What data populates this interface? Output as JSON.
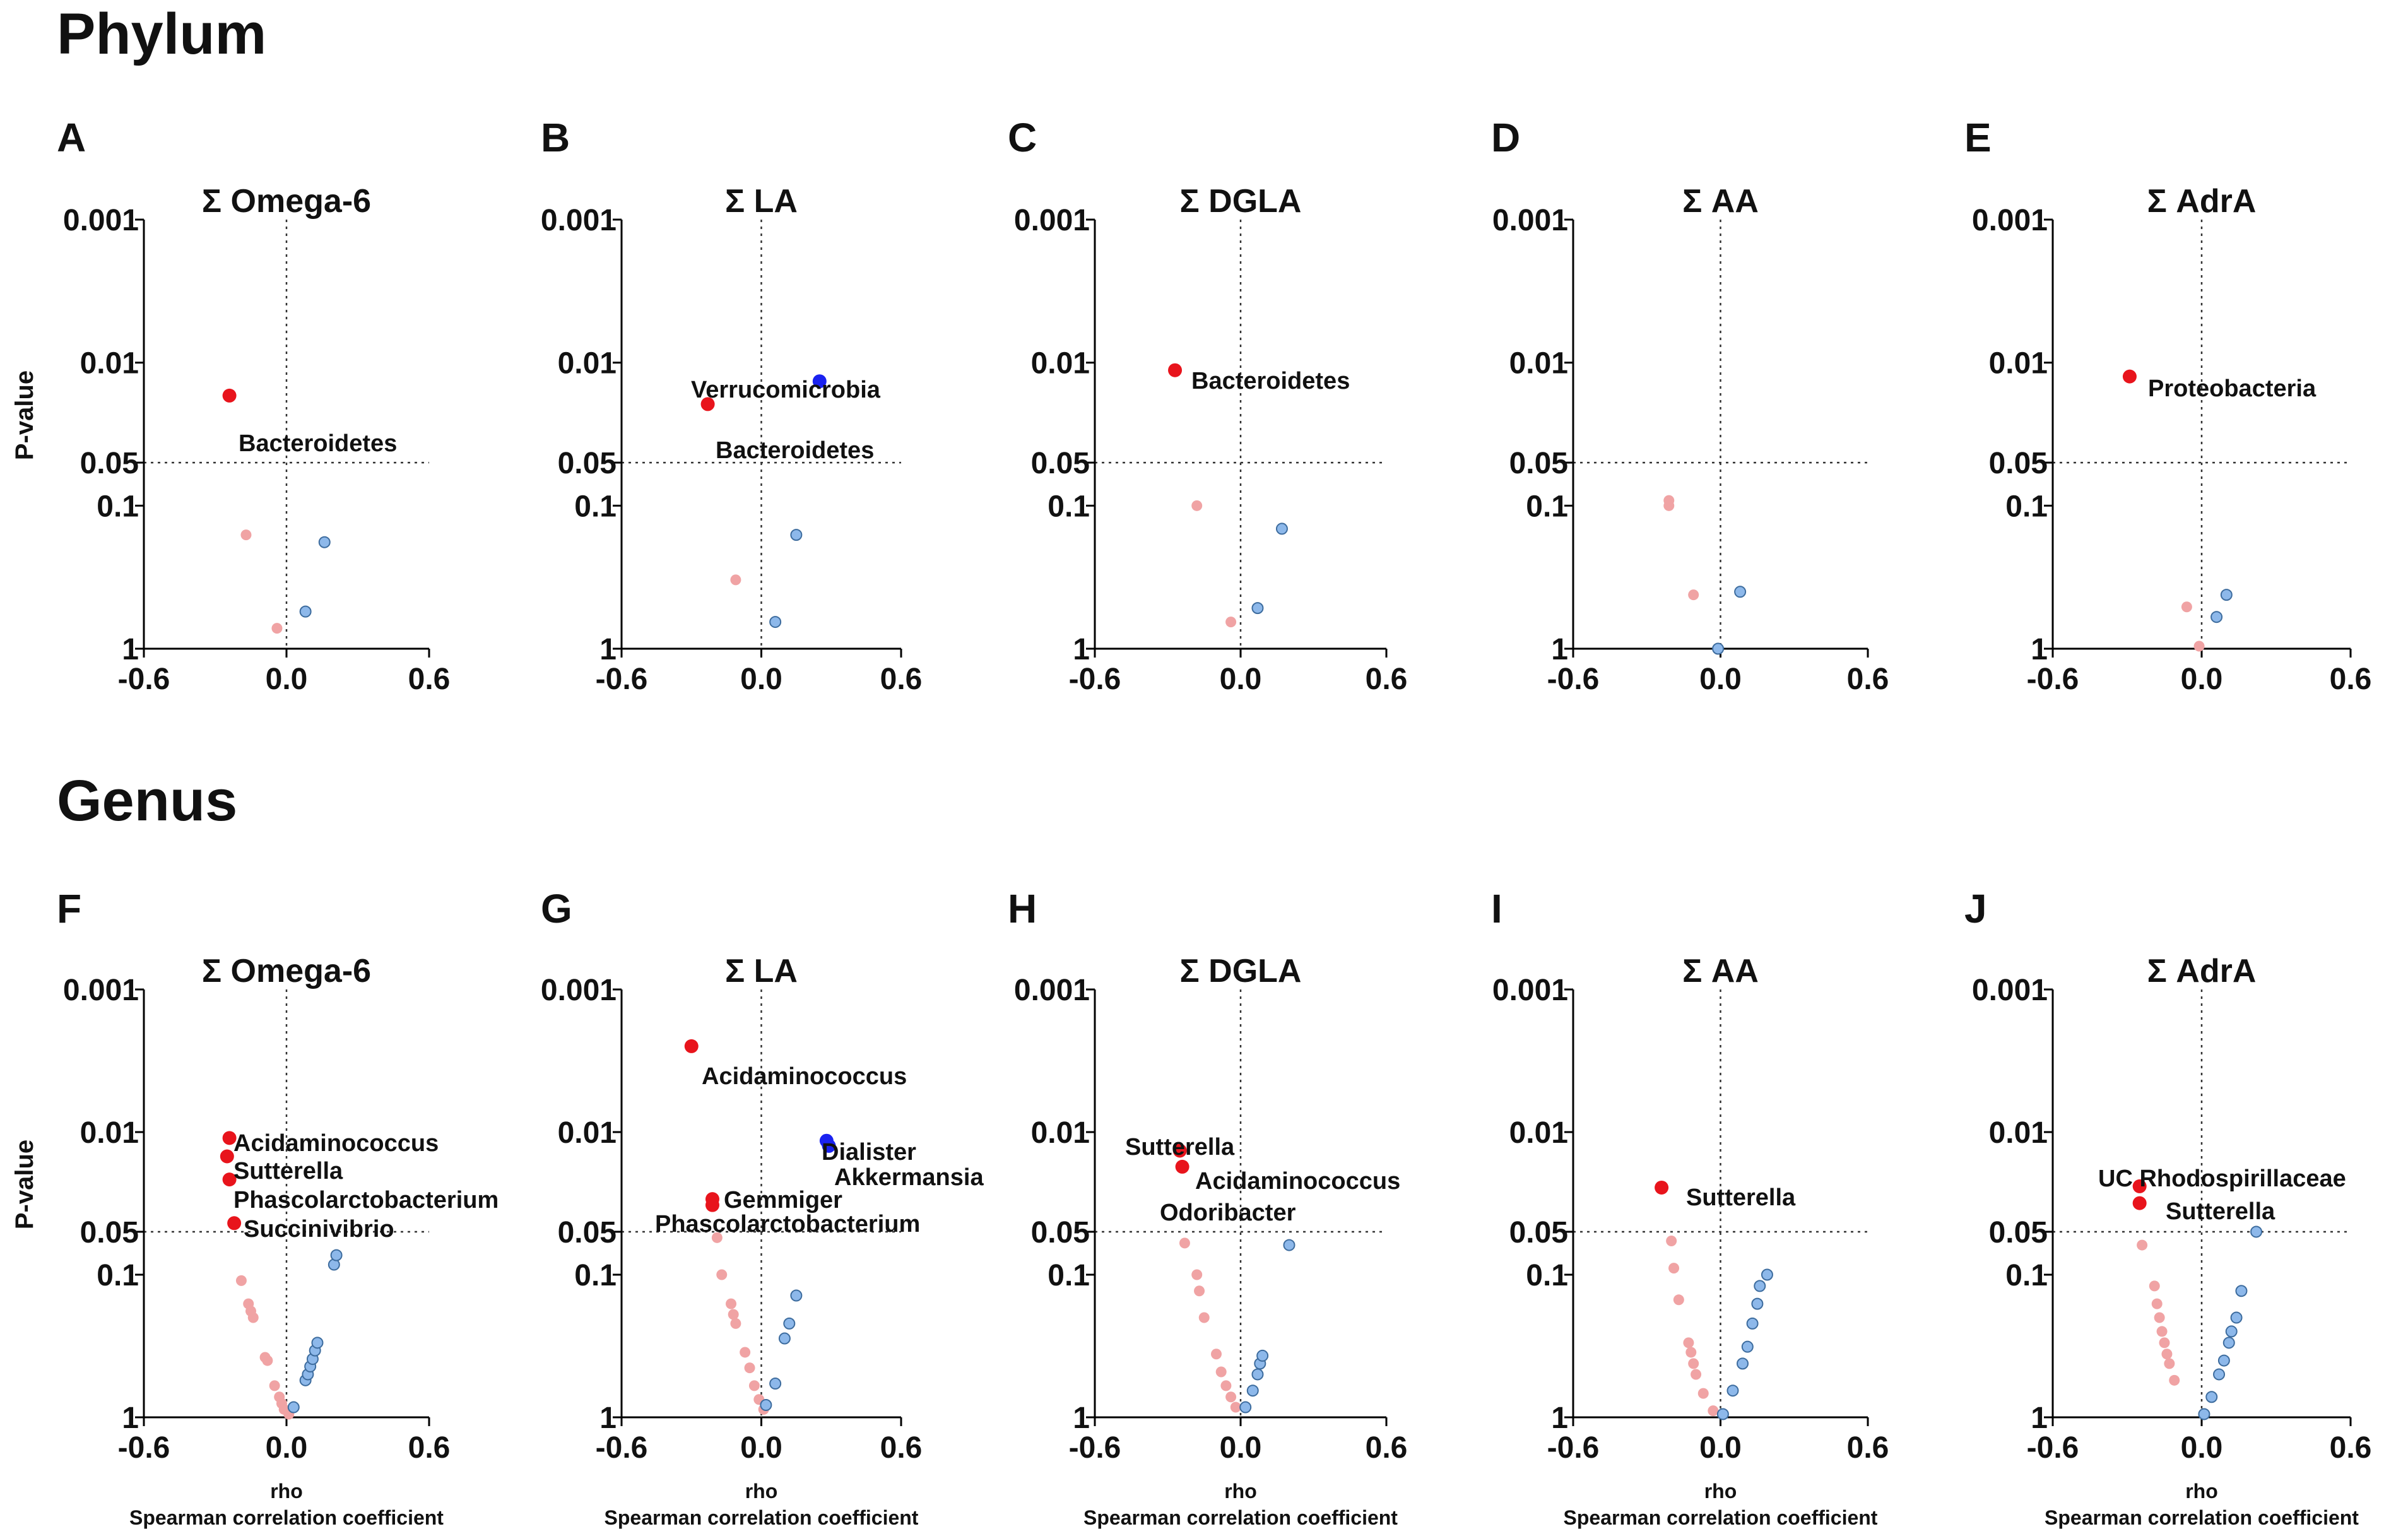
{
  "sections": [
    {
      "title": "Phylum"
    },
    {
      "title": "Genus"
    }
  ],
  "axes": {
    "ylabel": "P-value",
    "xlabel": "rho",
    "xlabel_sub": "Spearman correlation coefficient",
    "yticks": [
      "0.001",
      "0.01",
      "0.05",
      "0.1",
      "1"
    ],
    "xticks": [
      "-0.6",
      "0.0",
      "0.6"
    ]
  },
  "colors": {
    "sig_neg": "#e8141c",
    "sig_pos": "#1a22f0",
    "nonsig_neg": "#f0a3a4",
    "nonsig_pos": "#8db8ea",
    "nonsig_pos_edge": "#3d6c9e"
  },
  "chart_data": [
    {
      "panel": "A",
      "type": "scatter",
      "title": "Σ Omega-6",
      "xlim": [
        -0.6,
        0.6
      ],
      "ylim": [
        1,
        0.001
      ],
      "yscale": "log-reversed",
      "points": [
        {
          "x": -0.24,
          "p": 0.017,
          "group": "sig_neg",
          "label": "Bacteroidetes"
        },
        {
          "x": -0.17,
          "p": 0.16,
          "group": "nonsig_neg"
        },
        {
          "x": -0.04,
          "p": 0.72,
          "group": "nonsig_neg"
        },
        {
          "x": 0.16,
          "p": 0.18,
          "group": "nonsig_pos"
        },
        {
          "x": 0.08,
          "p": 0.55,
          "group": "nonsig_pos"
        }
      ]
    },
    {
      "panel": "B",
      "type": "scatter",
      "title": "Σ LA",
      "xlim": [
        -0.6,
        0.6
      ],
      "ylim": [
        1,
        0.001
      ],
      "yscale": "log-reversed",
      "points": [
        {
          "x": 0.25,
          "p": 0.0135,
          "group": "sig_pos",
          "label": "Verrucomicrobia"
        },
        {
          "x": -0.23,
          "p": 0.0195,
          "group": "sig_neg",
          "label": "Bacteroidetes"
        },
        {
          "x": -0.11,
          "p": 0.33,
          "group": "nonsig_neg"
        },
        {
          "x": 0.15,
          "p": 0.16,
          "group": "nonsig_pos"
        },
        {
          "x": 0.06,
          "p": 0.65,
          "group": "nonsig_pos"
        }
      ]
    },
    {
      "panel": "C",
      "type": "scatter",
      "title": "Σ DGLA",
      "xlim": [
        -0.6,
        0.6
      ],
      "ylim": [
        1,
        0.001
      ],
      "yscale": "log-reversed",
      "points": [
        {
          "x": -0.27,
          "p": 0.0113,
          "group": "sig_neg",
          "label": "Bacteroidetes"
        },
        {
          "x": -0.18,
          "p": 0.1,
          "group": "nonsig_neg"
        },
        {
          "x": -0.04,
          "p": 0.65,
          "group": "nonsig_neg"
        },
        {
          "x": 0.17,
          "p": 0.145,
          "group": "nonsig_pos"
        },
        {
          "x": 0.07,
          "p": 0.52,
          "group": "nonsig_pos"
        }
      ]
    },
    {
      "panel": "D",
      "type": "scatter",
      "title": "Σ AA",
      "xlim": [
        -0.6,
        0.6
      ],
      "ylim": [
        1,
        0.001
      ],
      "yscale": "log-reversed",
      "points": [
        {
          "x": -0.21,
          "p": 0.092,
          "group": "nonsig_neg"
        },
        {
          "x": -0.21,
          "p": 0.1,
          "group": "nonsig_neg"
        },
        {
          "x": -0.11,
          "p": 0.42,
          "group": "nonsig_neg"
        },
        {
          "x": 0.08,
          "p": 0.4,
          "group": "nonsig_pos"
        },
        {
          "x": -0.01,
          "p": 1.0,
          "group": "nonsig_pos"
        }
      ]
    },
    {
      "panel": "E",
      "type": "scatter",
      "title": "Σ AdrA",
      "xlim": [
        -0.6,
        0.6
      ],
      "ylim": [
        1,
        0.001
      ],
      "yscale": "log-reversed",
      "points": [
        {
          "x": -0.29,
          "p": 0.0125,
          "group": "sig_neg",
          "label": "Proteobacteria"
        },
        {
          "x": -0.06,
          "p": 0.51,
          "group": "nonsig_neg"
        },
        {
          "x": -0.01,
          "p": 0.96,
          "group": "nonsig_neg"
        },
        {
          "x": 0.1,
          "p": 0.42,
          "group": "nonsig_pos"
        },
        {
          "x": 0.06,
          "p": 0.6,
          "group": "nonsig_pos"
        }
      ]
    },
    {
      "panel": "F",
      "type": "scatter",
      "title": "Σ Omega-6",
      "xlim": [
        -0.6,
        0.6
      ],
      "ylim": [
        1,
        0.001
      ],
      "yscale": "log-reversed",
      "points": [
        {
          "x": -0.24,
          "p": 0.011,
          "group": "sig_neg",
          "label": "Acidaminococcus"
        },
        {
          "x": -0.25,
          "p": 0.0148,
          "group": "sig_neg",
          "label": "Sutterella"
        },
        {
          "x": -0.24,
          "p": 0.0215,
          "group": "sig_neg",
          "label": "Phascolarctobacterium"
        },
        {
          "x": -0.22,
          "p": 0.0435,
          "group": "sig_neg",
          "label": "Succinivibrio"
        },
        {
          "x": -0.19,
          "p": 0.11,
          "group": "nonsig_neg"
        },
        {
          "x": -0.16,
          "p": 0.16,
          "group": "nonsig_neg"
        },
        {
          "x": -0.15,
          "p": 0.18,
          "group": "nonsig_neg"
        },
        {
          "x": -0.14,
          "p": 0.2,
          "group": "nonsig_neg"
        },
        {
          "x": -0.09,
          "p": 0.38,
          "group": "nonsig_neg"
        },
        {
          "x": -0.08,
          "p": 0.4,
          "group": "nonsig_neg"
        },
        {
          "x": -0.05,
          "p": 0.6,
          "group": "nonsig_neg"
        },
        {
          "x": -0.03,
          "p": 0.72,
          "group": "nonsig_neg"
        },
        {
          "x": -0.02,
          "p": 0.8,
          "group": "nonsig_neg"
        },
        {
          "x": -0.01,
          "p": 0.88,
          "group": "nonsig_neg"
        },
        {
          "x": 0.01,
          "p": 0.95,
          "group": "nonsig_neg"
        },
        {
          "x": 0.03,
          "p": 0.85,
          "group": "nonsig_pos"
        },
        {
          "x": 0.08,
          "p": 0.55,
          "group": "nonsig_pos"
        },
        {
          "x": 0.09,
          "p": 0.5,
          "group": "nonsig_pos"
        },
        {
          "x": 0.1,
          "p": 0.44,
          "group": "nonsig_pos"
        },
        {
          "x": 0.11,
          "p": 0.39,
          "group": "nonsig_pos"
        },
        {
          "x": 0.12,
          "p": 0.34,
          "group": "nonsig_pos"
        },
        {
          "x": 0.13,
          "p": 0.3,
          "group": "nonsig_pos"
        },
        {
          "x": 0.2,
          "p": 0.085,
          "group": "nonsig_pos"
        },
        {
          "x": 0.21,
          "p": 0.073,
          "group": "nonsig_pos"
        }
      ]
    },
    {
      "panel": "G",
      "type": "scatter",
      "title": "Σ LA",
      "xlim": [
        -0.6,
        0.6
      ],
      "ylim": [
        1,
        0.001
      ],
      "yscale": "log-reversed",
      "points": [
        {
          "x": -0.3,
          "p": 0.0025,
          "group": "sig_neg",
          "label": "Acidaminococcus"
        },
        {
          "x": 0.28,
          "p": 0.0115,
          "group": "sig_pos",
          "label": "Dialister"
        },
        {
          "x": 0.29,
          "p": 0.0125,
          "group": "sig_pos",
          "label": "Akkermansia"
        },
        {
          "x": -0.21,
          "p": 0.0295,
          "group": "sig_neg",
          "label": "Gemmiger"
        },
        {
          "x": -0.21,
          "p": 0.0325,
          "group": "sig_neg",
          "label": "Phascolarctobacterium"
        },
        {
          "x": -0.19,
          "p": 0.055,
          "group": "nonsig_neg"
        },
        {
          "x": -0.17,
          "p": 0.1,
          "group": "nonsig_neg"
        },
        {
          "x": -0.13,
          "p": 0.16,
          "group": "nonsig_neg"
        },
        {
          "x": -0.12,
          "p": 0.19,
          "group": "nonsig_neg"
        },
        {
          "x": -0.11,
          "p": 0.22,
          "group": "nonsig_neg"
        },
        {
          "x": -0.07,
          "p": 0.35,
          "group": "nonsig_neg"
        },
        {
          "x": -0.05,
          "p": 0.45,
          "group": "nonsig_neg"
        },
        {
          "x": -0.03,
          "p": 0.6,
          "group": "nonsig_neg"
        },
        {
          "x": -0.01,
          "p": 0.75,
          "group": "nonsig_neg"
        },
        {
          "x": 0.01,
          "p": 0.88,
          "group": "nonsig_neg"
        },
        {
          "x": 0.02,
          "p": 0.82,
          "group": "nonsig_pos"
        },
        {
          "x": 0.06,
          "p": 0.58,
          "group": "nonsig_pos"
        },
        {
          "x": 0.1,
          "p": 0.28,
          "group": "nonsig_pos"
        },
        {
          "x": 0.12,
          "p": 0.22,
          "group": "nonsig_pos"
        },
        {
          "x": 0.15,
          "p": 0.14,
          "group": "nonsig_pos"
        }
      ]
    },
    {
      "panel": "H",
      "type": "scatter",
      "title": "Σ DGLA",
      "xlim": [
        -0.6,
        0.6
      ],
      "ylim": [
        1,
        0.001
      ],
      "yscale": "log-reversed",
      "points": [
        {
          "x": -0.25,
          "p": 0.0135,
          "group": "sig_neg",
          "label": "Sutterella"
        },
        {
          "x": -0.24,
          "p": 0.0175,
          "group": "sig_neg",
          "label": "Acidaminococcus"
        },
        {
          "x": -0.23,
          "p": 0.06,
          "group": "nonsig_neg",
          "label": "Odoribacter"
        },
        {
          "x": -0.18,
          "p": 0.1,
          "group": "nonsig_neg"
        },
        {
          "x": -0.17,
          "p": 0.13,
          "group": "nonsig_neg"
        },
        {
          "x": -0.15,
          "p": 0.2,
          "group": "nonsig_neg"
        },
        {
          "x": -0.1,
          "p": 0.36,
          "group": "nonsig_neg"
        },
        {
          "x": -0.08,
          "p": 0.48,
          "group": "nonsig_neg"
        },
        {
          "x": -0.06,
          "p": 0.6,
          "group": "nonsig_neg"
        },
        {
          "x": -0.04,
          "p": 0.72,
          "group": "nonsig_neg"
        },
        {
          "x": -0.02,
          "p": 0.85,
          "group": "nonsig_neg"
        },
        {
          "x": 0.02,
          "p": 0.85,
          "group": "nonsig_pos"
        },
        {
          "x": 0.05,
          "p": 0.65,
          "group": "nonsig_pos"
        },
        {
          "x": 0.07,
          "p": 0.5,
          "group": "nonsig_pos"
        },
        {
          "x": 0.08,
          "p": 0.42,
          "group": "nonsig_pos"
        },
        {
          "x": 0.09,
          "p": 0.37,
          "group": "nonsig_pos"
        },
        {
          "x": 0.2,
          "p": 0.062,
          "group": "nonsig_pos"
        }
      ]
    },
    {
      "panel": "I",
      "type": "scatter",
      "title": "Σ AA",
      "xlim": [
        -0.6,
        0.6
      ],
      "ylim": [
        1,
        0.001
      ],
      "yscale": "log-reversed",
      "points": [
        {
          "x": -0.24,
          "p": 0.0245,
          "group": "sig_neg",
          "label": "Sutterella"
        },
        {
          "x": -0.2,
          "p": 0.058,
          "group": "nonsig_neg"
        },
        {
          "x": -0.19,
          "p": 0.09,
          "group": "nonsig_neg"
        },
        {
          "x": -0.17,
          "p": 0.15,
          "group": "nonsig_neg"
        },
        {
          "x": -0.13,
          "p": 0.3,
          "group": "nonsig_neg"
        },
        {
          "x": -0.12,
          "p": 0.35,
          "group": "nonsig_neg"
        },
        {
          "x": -0.11,
          "p": 0.42,
          "group": "nonsig_neg"
        },
        {
          "x": -0.1,
          "p": 0.5,
          "group": "nonsig_neg"
        },
        {
          "x": -0.07,
          "p": 0.68,
          "group": "nonsig_neg"
        },
        {
          "x": -0.03,
          "p": 0.9,
          "group": "nonsig_neg"
        },
        {
          "x": 0.01,
          "p": 0.95,
          "group": "nonsig_pos"
        },
        {
          "x": 0.05,
          "p": 0.65,
          "group": "nonsig_pos"
        },
        {
          "x": 0.09,
          "p": 0.42,
          "group": "nonsig_pos"
        },
        {
          "x": 0.11,
          "p": 0.32,
          "group": "nonsig_pos"
        },
        {
          "x": 0.13,
          "p": 0.22,
          "group": "nonsig_pos"
        },
        {
          "x": 0.15,
          "p": 0.16,
          "group": "nonsig_pos"
        },
        {
          "x": 0.16,
          "p": 0.12,
          "group": "nonsig_pos"
        },
        {
          "x": 0.19,
          "p": 0.1,
          "group": "nonsig_pos"
        }
      ]
    },
    {
      "panel": "J",
      "type": "scatter",
      "title": "Σ AdrA",
      "xlim": [
        -0.6,
        0.6
      ],
      "ylim": [
        1,
        0.001
      ],
      "yscale": "log-reversed",
      "points": [
        {
          "x": -0.25,
          "p": 0.024,
          "group": "sig_neg",
          "label": "UC Rhodospirillaceae"
        },
        {
          "x": -0.25,
          "p": 0.0315,
          "group": "sig_neg",
          "label": "Sutterella"
        },
        {
          "x": -0.24,
          "p": 0.062,
          "group": "nonsig_neg"
        },
        {
          "x": -0.19,
          "p": 0.12,
          "group": "nonsig_neg"
        },
        {
          "x": -0.18,
          "p": 0.16,
          "group": "nonsig_neg"
        },
        {
          "x": -0.17,
          "p": 0.2,
          "group": "nonsig_neg"
        },
        {
          "x": -0.16,
          "p": 0.25,
          "group": "nonsig_neg"
        },
        {
          "x": -0.15,
          "p": 0.3,
          "group": "nonsig_neg"
        },
        {
          "x": -0.14,
          "p": 0.36,
          "group": "nonsig_neg"
        },
        {
          "x": -0.13,
          "p": 0.42,
          "group": "nonsig_neg"
        },
        {
          "x": -0.11,
          "p": 0.55,
          "group": "nonsig_neg"
        },
        {
          "x": 0.01,
          "p": 0.95,
          "group": "nonsig_pos"
        },
        {
          "x": 0.04,
          "p": 0.72,
          "group": "nonsig_pos"
        },
        {
          "x": 0.07,
          "p": 0.5,
          "group": "nonsig_pos"
        },
        {
          "x": 0.09,
          "p": 0.4,
          "group": "nonsig_pos"
        },
        {
          "x": 0.11,
          "p": 0.3,
          "group": "nonsig_pos"
        },
        {
          "x": 0.12,
          "p": 0.25,
          "group": "nonsig_pos"
        },
        {
          "x": 0.14,
          "p": 0.2,
          "group": "nonsig_pos"
        },
        {
          "x": 0.16,
          "p": 0.13,
          "group": "nonsig_pos"
        },
        {
          "x": 0.22,
          "p": 0.05,
          "group": "nonsig_pos"
        }
      ]
    }
  ]
}
